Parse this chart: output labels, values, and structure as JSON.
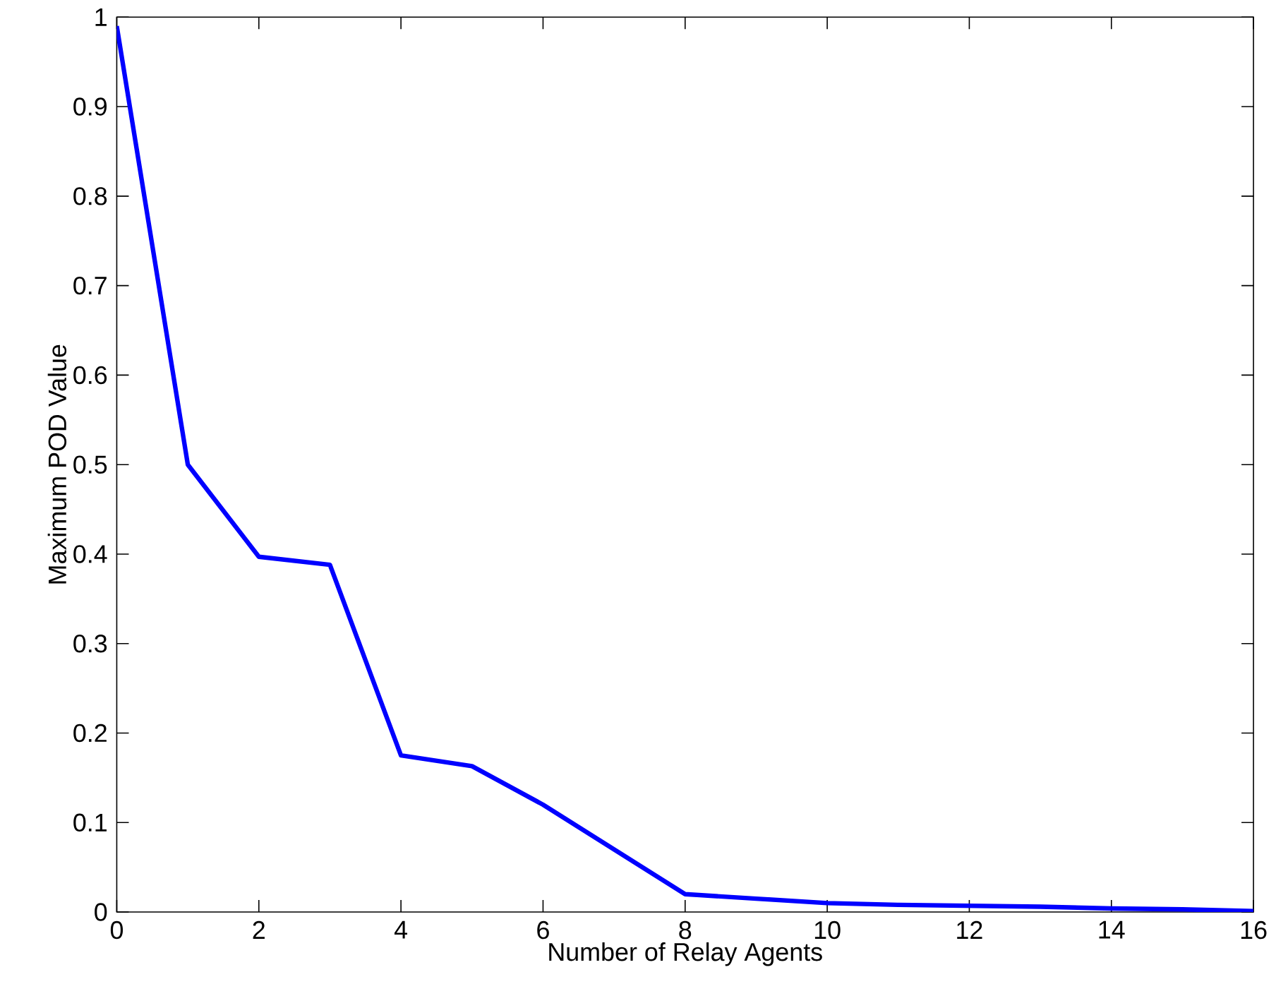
{
  "chart_data": {
    "type": "line",
    "xlabel": "Number of Relay Agents",
    "ylabel": "Maximum POD Value",
    "x": [
      0,
      1,
      2,
      3,
      4,
      5,
      6,
      7,
      8,
      9,
      10,
      11,
      12,
      13,
      14,
      15,
      16
    ],
    "series": [
      {
        "color": "#0000ff",
        "values": [
          0.99,
          0.5,
          0.397,
          0.388,
          0.175,
          0.163,
          0.12,
          0.07,
          0.02,
          0.015,
          0.01,
          0.008,
          0.007,
          0.006,
          0.004,
          0.003,
          0.001
        ]
      }
    ],
    "xlim": [
      0,
      16
    ],
    "ylim": [
      0,
      1
    ],
    "xticks": [
      0,
      2,
      4,
      6,
      8,
      10,
      12,
      14,
      16
    ],
    "yticks": [
      0,
      0.1,
      0.2,
      0.3,
      0.4,
      0.5,
      0.6,
      0.7,
      0.8,
      0.9,
      1
    ],
    "marker": "none",
    "line_style": "solid"
  }
}
